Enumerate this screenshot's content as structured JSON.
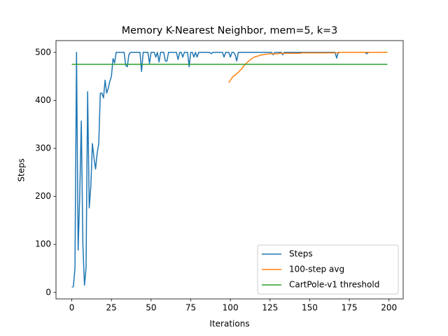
{
  "chart_data": {
    "type": "line",
    "title": "Memory K-Nearest Neighbor, mem=5, k=3",
    "x_label": "Iterations",
    "y_label": "Steps",
    "xlim": [
      -9.95,
      208.95
    ],
    "ylim": [
      -13.45,
      524.45
    ],
    "xticks": [
      0,
      25,
      50,
      75,
      100,
      125,
      150,
      175,
      200
    ],
    "yticks": [
      0,
      100,
      200,
      300,
      400,
      500
    ],
    "legend": "lower right",
    "series": [
      {
        "name": "Steps",
        "color": "#1f77b4",
        "x": [
          0,
          1,
          2,
          3,
          4,
          5,
          6,
          7,
          8,
          9,
          10,
          11,
          12,
          13,
          14,
          15,
          16,
          17,
          18,
          19,
          20,
          21,
          22,
          23,
          24,
          25,
          26,
          27,
          28,
          29,
          30,
          31,
          32,
          33,
          34,
          35,
          36,
          37,
          38,
          39,
          40,
          41,
          42,
          43,
          44,
          45,
          46,
          47,
          48,
          49,
          50,
          51,
          52,
          53,
          54,
          55,
          56,
          57,
          58,
          59,
          60,
          61,
          62,
          63,
          64,
          65,
          66,
          67,
          68,
          69,
          70,
          71,
          72,
          73,
          74,
          75,
          76,
          77,
          78,
          79,
          80,
          81,
          82,
          83,
          84,
          85,
          86,
          87,
          88,
          89,
          90,
          91,
          92,
          93,
          94,
          95,
          96,
          97,
          98,
          99,
          100,
          101,
          102,
          103,
          104,
          105,
          106,
          107,
          108,
          109,
          110,
          111,
          112,
          113,
          114,
          115,
          116,
          117,
          118,
          119,
          120,
          121,
          122,
          123,
          124,
          125,
          126,
          127,
          128,
          129,
          130,
          131,
          132,
          133,
          134,
          135,
          136,
          137,
          138,
          139,
          140,
          141,
          142,
          143,
          144,
          145,
          146,
          147,
          148,
          149,
          150,
          151,
          152,
          153,
          154,
          155,
          156,
          157,
          158,
          159,
          160,
          161,
          162,
          163,
          164,
          165,
          166,
          167,
          168,
          169,
          170,
          171,
          172,
          173,
          174,
          175,
          176,
          177,
          178,
          179,
          180,
          181,
          182,
          183,
          184,
          185,
          186,
          187,
          188,
          189,
          190,
          191,
          192,
          193,
          194,
          195,
          196,
          197,
          198,
          199
        ],
        "values": [
          11,
          12,
          50,
          500,
          88,
          200,
          357,
          100,
          15,
          50,
          418,
          176,
          220,
          310,
          280,
          257,
          290,
          310,
          415,
          415,
          405,
          442,
          415,
          425,
          440,
          450,
          487,
          478,
          500,
          500,
          500,
          500,
          500,
          500,
          473,
          470,
          495,
          500,
          500,
          500,
          500,
          500,
          500,
          500,
          460,
          500,
          500,
          500,
          500,
          477,
          500,
          500,
          500,
          490,
          500,
          480,
          500,
          500,
          500,
          482,
          482,
          500,
          500,
          500,
          500,
          500,
          500,
          485,
          500,
          500,
          490,
          500,
          500,
          500,
          470,
          500,
          500,
          490,
          500,
          490,
          500,
          500,
          500,
          500,
          500,
          500,
          500,
          500,
          497,
          500,
          500,
          500,
          500,
          500,
          500,
          500,
          490,
          500,
          500,
          500,
          490,
          500,
          500,
          495,
          482,
          500,
          500,
          500,
          500,
          500,
          500,
          500,
          500,
          500,
          500,
          500,
          500,
          500,
          500,
          500,
          500,
          500,
          500,
          500,
          500,
          500,
          500,
          495,
          500,
          500,
          500,
          500,
          500,
          495,
          500,
          500,
          500,
          500,
          500,
          500,
          500,
          500,
          500,
          500,
          500,
          500,
          500,
          500,
          500,
          500,
          500,
          500,
          500,
          500,
          500,
          500,
          500,
          500,
          500,
          500,
          500,
          500,
          500,
          500,
          500,
          500,
          500,
          488,
          500,
          500,
          500,
          500,
          500,
          500,
          500,
          500,
          500,
          500,
          500,
          500,
          500,
          500,
          500,
          500,
          500,
          500,
          497,
          500,
          500,
          500,
          500,
          500,
          500,
          500,
          500,
          500,
          500,
          500,
          500,
          500
        ]
      },
      {
        "name": "100-step avg",
        "color": "#ff7f0e",
        "x": [
          99,
          100,
          101,
          102,
          103,
          104,
          105,
          106,
          107,
          108,
          109,
          110,
          111,
          112,
          113,
          114,
          115,
          116,
          117,
          118,
          119,
          120,
          121,
          122,
          123,
          124,
          125,
          126,
          127,
          128,
          129,
          130,
          131,
          132,
          133,
          134,
          135,
          136,
          137,
          138,
          139,
          140,
          141,
          142,
          143,
          144,
          145,
          146,
          147,
          148,
          149,
          150,
          151,
          152,
          153,
          154,
          155,
          156,
          157,
          158,
          159,
          160,
          161,
          162,
          163,
          164,
          165,
          166,
          167,
          168,
          169,
          170,
          171,
          172,
          173,
          174,
          175,
          176,
          177,
          178,
          179,
          180,
          181,
          182,
          183,
          184,
          185,
          186,
          187,
          188,
          189,
          190,
          191,
          192,
          193,
          194,
          195,
          196,
          197,
          198,
          199
        ],
        "values": [
          437,
          442,
          447,
          451,
          452,
          456,
          458,
          462,
          465,
          470,
          474,
          477,
          480,
          483,
          486,
          488,
          490,
          491,
          492,
          493,
          494,
          495,
          495,
          496,
          496,
          497,
          497,
          497,
          497,
          497,
          497,
          497,
          498,
          498,
          498,
          498,
          498,
          498,
          498,
          498,
          498,
          498,
          498,
          498,
          498,
          498,
          499,
          499,
          499,
          499,
          499,
          499,
          499,
          499,
          499,
          499,
          499,
          499,
          499,
          499,
          499,
          499,
          499,
          499,
          499,
          499,
          499,
          499,
          499,
          499,
          500,
          500,
          500,
          500,
          500,
          500,
          500,
          500,
          500,
          500,
          500,
          500,
          500,
          500,
          500,
          500,
          500,
          500,
          500,
          500,
          500,
          500,
          500,
          500,
          500,
          500,
          500,
          500,
          500,
          500,
          500
        ]
      },
      {
        "name": "CartPole-v1 threshold",
        "color": "#2ca02c",
        "x": [
          0,
          199
        ],
        "values": [
          475,
          475
        ]
      }
    ]
  }
}
